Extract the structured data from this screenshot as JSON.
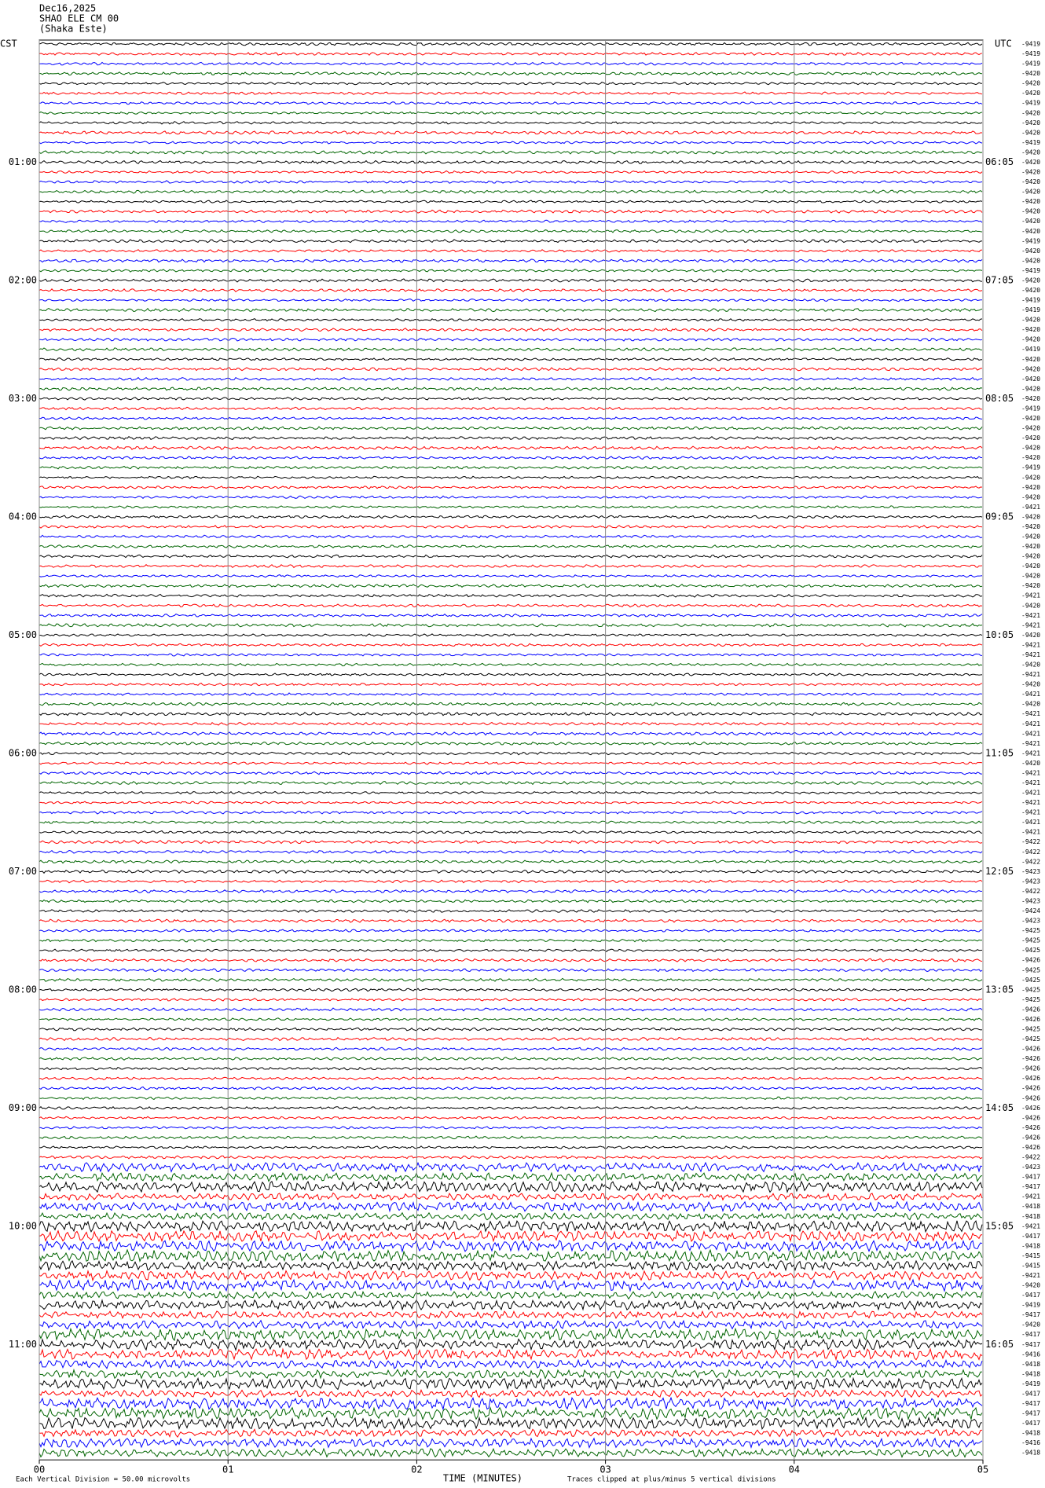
{
  "chart_data": {
    "type": "helicorder",
    "title_lines": [
      "Dec16,2025",
      "SHAO ELE CM 00",
      "(Shaka Este)"
    ],
    "left_zone": "CST",
    "right_zone": "UTC",
    "left_hour_labels": [
      "01:00",
      "02:00",
      "03:00",
      "04:00",
      "05:00",
      "06:00",
      "07:00",
      "08:00",
      "09:00",
      "10:00",
      "11:00"
    ],
    "right_hour_labels": [
      "06:05",
      "07:05",
      "08:05",
      "09:05",
      "10:05",
      "11:05",
      "12:05",
      "13:05",
      "14:05",
      "15:05",
      "16:05"
    ],
    "trace_colors": [
      "#000000",
      "#ff0000",
      "#0000ff",
      "#006400"
    ],
    "offsets": [
      -9419,
      -9419,
      -9419,
      -9420,
      -9420,
      -9420,
      -9419,
      -9420,
      -9420,
      -9420,
      -9419,
      -9420,
      -9420,
      -9420,
      -9420,
      -9420,
      -9420,
      -9420,
      -9420,
      -9420,
      -9419,
      -9420,
      -9420,
      -9419,
      -9420,
      -9420,
      -9419,
      -9419,
      -9420,
      -9420,
      -9420,
      -9419,
      -9420,
      -9420,
      -9420,
      -9420,
      -9420,
      -9419,
      -9420,
      -9420,
      -9420,
      -9420,
      -9420,
      -9419,
      -9420,
      -9420,
      -9420,
      -9421,
      -9420,
      -9420,
      -9420,
      -9420,
      -9420,
      -9420,
      -9420,
      -9420,
      -9421,
      -9420,
      -9421,
      -9421,
      -9420,
      -9421,
      -9421,
      -9420,
      -9421,
      -9420,
      -9421,
      -9420,
      -9421,
      -9421,
      -9421,
      -9421,
      -9421,
      -9420,
      -9421,
      -9421,
      -9421,
      -9421,
      -9421,
      -9421,
      -9421,
      -9422,
      -9422,
      -9422,
      -9423,
      -9423,
      -9422,
      -9423,
      -9424,
      -9423,
      -9425,
      -9425,
      -9425,
      -9426,
      -9425,
      -9425,
      -9425,
      -9425,
      -9426,
      -9426,
      -9425,
      -9425,
      -9426,
      -9426,
      -9426,
      -9426,
      -9426,
      -9426,
      -9426,
      -9426,
      -9426,
      -9426,
      -9426,
      -9422,
      -9423,
      -9417,
      -9417,
      -9421,
      -9418,
      -9418,
      -9421,
      -9417,
      -9418,
      -9415,
      -9415,
      -9421,
      -9420,
      -9417,
      -9419,
      -9417,
      -9420,
      -9417,
      -9417,
      -9416,
      -9418,
      -9418,
      -9419,
      -9417,
      -9417,
      -9417,
      -9417,
      -9418,
      -9416,
      -9418
    ],
    "xlabel": "TIME (MINUTES)",
    "xlim": [
      0,
      5
    ],
    "xticks": [
      {
        "value": 0,
        "label": "00"
      },
      {
        "value": 1,
        "label": "01"
      },
      {
        "value": 2,
        "label": "02"
      },
      {
        "value": 3,
        "label": "03"
      },
      {
        "value": 4,
        "label": "04"
      },
      {
        "value": 5,
        "label": "05"
      }
    ],
    "grid": true,
    "scale_note": "Each Vertical Division =   50.00 microvolts",
    "clip_note": "Traces clipped at plus/minus 5 vertical divisions"
  }
}
